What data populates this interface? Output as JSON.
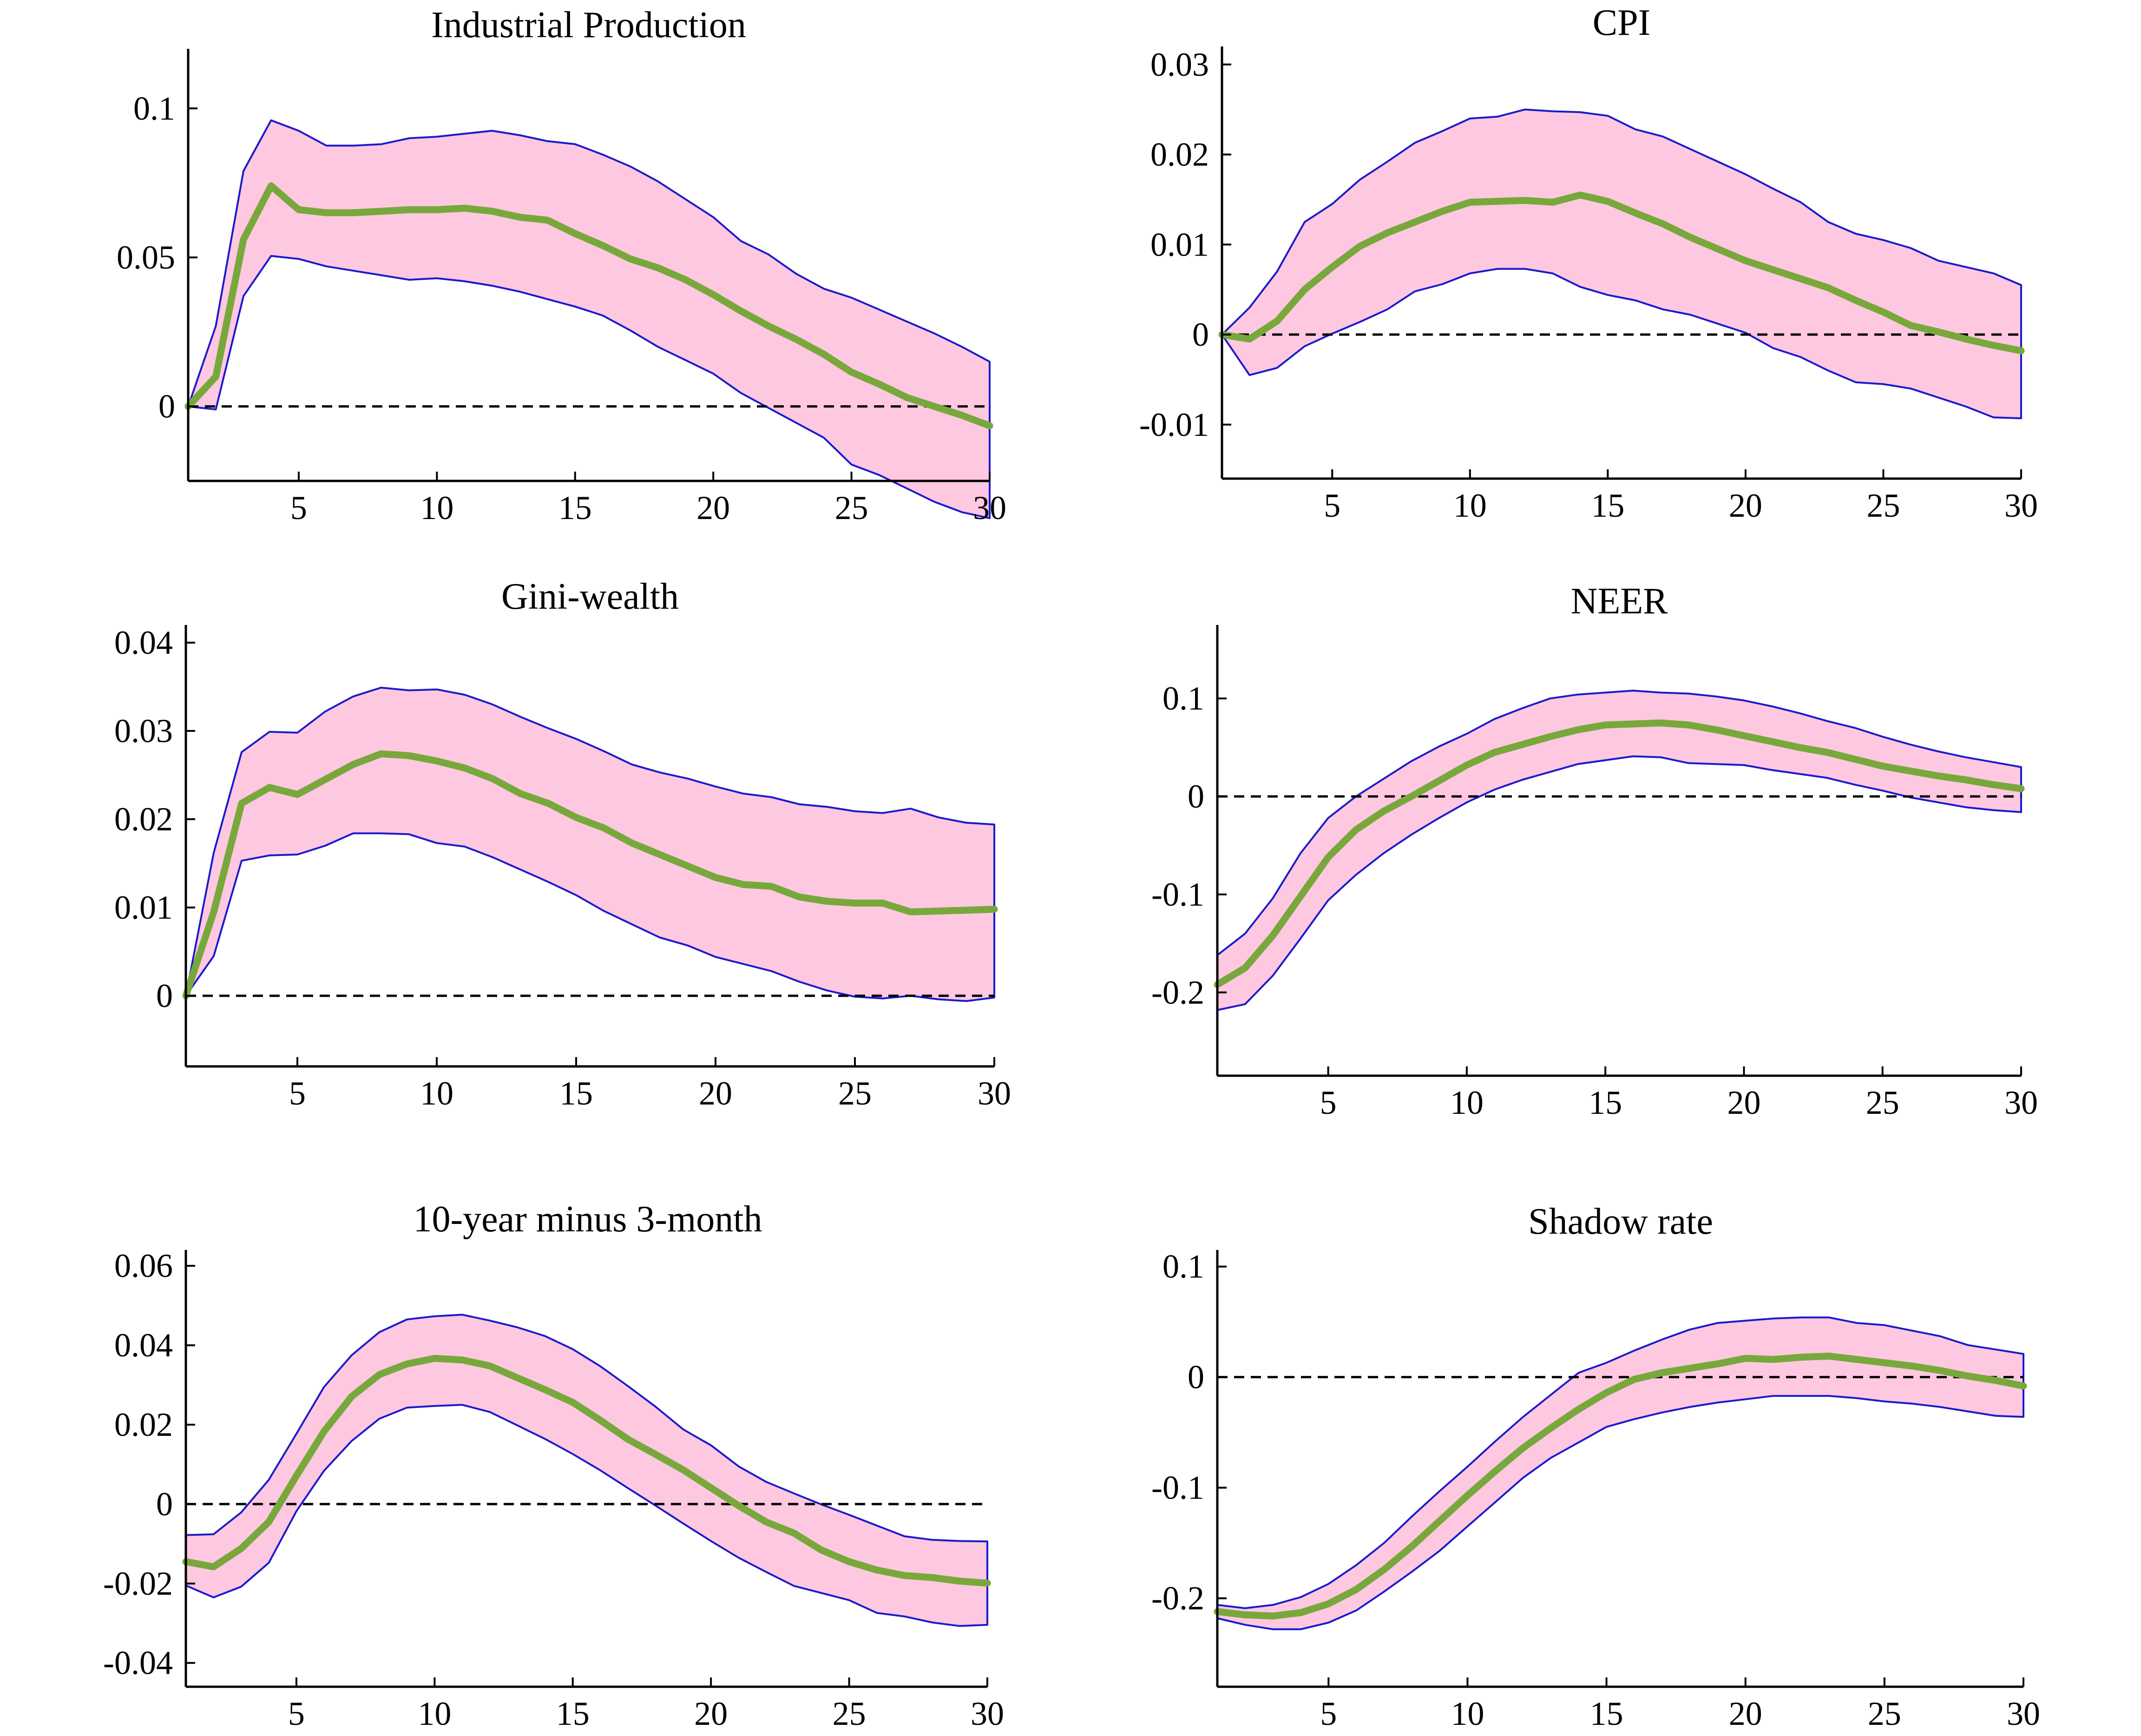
{
  "colors": {
    "band_fill": "#ffc8e1",
    "band_line": "#1a1acc",
    "median_line": "#78a83c",
    "zero_line": "#000000"
  },
  "chart_data": [
    {
      "id": "industrial-production",
      "type": "line",
      "title": "Industrial Production",
      "x": [
        1,
        2,
        3,
        4,
        5,
        6,
        7,
        8,
        9,
        10,
        11,
        12,
        13,
        14,
        15,
        16,
        17,
        18,
        19,
        20,
        21,
        22,
        23,
        24,
        25,
        26,
        27,
        28,
        29,
        30
      ],
      "xlim": [
        1,
        30
      ],
      "ylim": [
        -0.025,
        0.12
      ],
      "xticks": [
        5,
        10,
        15,
        20,
        25,
        30
      ],
      "yticks": [
        0,
        0.05,
        0.1
      ],
      "ytick_labels": [
        "0",
        "0.05",
        "0.1"
      ],
      "median": [
        0,
        0.01,
        0.056,
        0.074,
        0.066,
        0.065,
        0.065,
        0.0655,
        0.066,
        0.066,
        0.0665,
        0.0655,
        0.0635,
        0.0625,
        0.058,
        0.054,
        0.0495,
        0.0465,
        0.0425,
        0.0375,
        0.032,
        0.027,
        0.0225,
        0.0175,
        0.0115,
        0.0075,
        0.003,
        0.0,
        -0.003,
        -0.0065
      ],
      "upper": [
        0,
        0.027,
        0.079,
        0.096,
        0.0925,
        0.0875,
        0.0875,
        0.088,
        0.09,
        0.0905,
        0.0915,
        0.0925,
        0.091,
        0.089,
        0.088,
        0.0845,
        0.0805,
        0.0755,
        0.0695,
        0.0635,
        0.0555,
        0.051,
        0.0445,
        0.0395,
        0.0365,
        0.0325,
        0.0285,
        0.0245,
        0.02,
        0.015
      ],
      "lower": [
        0,
        -0.001,
        0.037,
        0.0505,
        0.0495,
        0.047,
        0.0455,
        0.044,
        0.0425,
        0.043,
        0.042,
        0.0405,
        0.0385,
        0.036,
        0.0335,
        0.0305,
        0.0255,
        0.02,
        0.0155,
        0.011,
        0.0045,
        -0.0005,
        -0.0055,
        -0.0105,
        -0.0195,
        -0.023,
        -0.0275,
        -0.032,
        -0.0355,
        -0.0375
      ]
    },
    {
      "id": "cpi",
      "type": "line",
      "title": "CPI",
      "x": [
        1,
        2,
        3,
        4,
        5,
        6,
        7,
        8,
        9,
        10,
        11,
        12,
        13,
        14,
        15,
        16,
        17,
        18,
        19,
        20,
        21,
        22,
        23,
        24,
        25,
        26,
        27,
        28,
        29,
        30
      ],
      "xlim": [
        1,
        30
      ],
      "ylim": [
        -0.016,
        0.032
      ],
      "xticks": [
        5,
        10,
        15,
        20,
        25,
        30
      ],
      "yticks": [
        -0.01,
        0,
        0.01,
        0.02,
        0.03
      ],
      "ytick_labels": [
        "-0.01",
        "0",
        "0.01",
        "0.02",
        "0.03"
      ],
      "median": [
        0,
        -0.0005,
        0.0015,
        0.005,
        0.0075,
        0.0098,
        0.0113,
        0.0125,
        0.0137,
        0.0147,
        0.0148,
        0.0149,
        0.0147,
        0.0155,
        0.0148,
        0.0135,
        0.0123,
        0.0108,
        0.0095,
        0.0082,
        0.0072,
        0.0062,
        0.0052,
        0.0038,
        0.0025,
        0.001,
        0.0003,
        -0.0005,
        -0.0012,
        -0.0018
      ],
      "upper": [
        0,
        0.003,
        0.007,
        0.0125,
        0.0145,
        0.0172,
        0.0192,
        0.0213,
        0.0226,
        0.024,
        0.0242,
        0.025,
        0.0248,
        0.0247,
        0.0243,
        0.0228,
        0.022,
        0.0206,
        0.0192,
        0.0178,
        0.0162,
        0.0147,
        0.0125,
        0.0112,
        0.0105,
        0.0096,
        0.0082,
        0.0075,
        0.0068,
        0.0055
      ],
      "lower": [
        0,
        -0.0045,
        -0.0037,
        -0.0013,
        0.0001,
        0.0014,
        0.0028,
        0.0048,
        0.0056,
        0.0068,
        0.0073,
        0.0073,
        0.0068,
        0.0053,
        0.0044,
        0.0038,
        0.0028,
        0.0022,
        0.0012,
        0.0002,
        -0.0015,
        -0.0025,
        -0.004,
        -0.0053,
        -0.0055,
        -0.006,
        -0.007,
        -0.008,
        -0.0092,
        -0.0093
      ]
    },
    {
      "id": "gini-wealth",
      "type": "line",
      "title": "Gini-wealth",
      "x": [
        1,
        2,
        3,
        4,
        5,
        6,
        7,
        8,
        9,
        10,
        11,
        12,
        13,
        14,
        15,
        16,
        17,
        18,
        19,
        20,
        21,
        22,
        23,
        24,
        25,
        26,
        27,
        28,
        29,
        30
      ],
      "xlim": [
        1,
        30
      ],
      "ylim": [
        -0.008,
        0.042
      ],
      "xticks": [
        5,
        10,
        15,
        20,
        25,
        30
      ],
      "yticks": [
        0,
        0.01,
        0.02,
        0.03,
        0.04
      ],
      "ytick_labels": [
        "0",
        "0.01",
        "0.02",
        "0.03",
        "0.04"
      ],
      "median": [
        0,
        0.0095,
        0.0218,
        0.0236,
        0.0228,
        0.0245,
        0.0262,
        0.0274,
        0.0272,
        0.0266,
        0.0258,
        0.0246,
        0.0229,
        0.0218,
        0.0202,
        0.019,
        0.0173,
        0.016,
        0.0147,
        0.0134,
        0.0126,
        0.0124,
        0.0112,
        0.0107,
        0.0105,
        0.0105,
        0.0095,
        0.0096,
        0.0097,
        0.0098
      ],
      "upper": [
        0,
        0.0162,
        0.0276,
        0.0299,
        0.0298,
        0.0322,
        0.0339,
        0.0349,
        0.0346,
        0.0347,
        0.0341,
        0.033,
        0.0316,
        0.0303,
        0.0291,
        0.0277,
        0.0262,
        0.0253,
        0.0246,
        0.0237,
        0.0229,
        0.0225,
        0.0217,
        0.0214,
        0.0209,
        0.0207,
        0.0212,
        0.0202,
        0.0196,
        0.0194
      ],
      "lower": [
        0,
        0.0045,
        0.0153,
        0.0159,
        0.016,
        0.017,
        0.0184,
        0.0184,
        0.0183,
        0.0173,
        0.0169,
        0.0157,
        0.0143,
        0.0129,
        0.0114,
        0.0096,
        0.0081,
        0.0066,
        0.0057,
        0.0044,
        0.0036,
        0.0028,
        0.0016,
        0.0006,
        -0.0001,
        -0.0003,
        0.0,
        -0.0004,
        -0.0006,
        -0.0002
      ]
    },
    {
      "id": "neer",
      "type": "line",
      "title": "NEER",
      "x": [
        1,
        2,
        3,
        4,
        5,
        6,
        7,
        8,
        9,
        10,
        11,
        12,
        13,
        14,
        15,
        16,
        17,
        18,
        19,
        20,
        21,
        22,
        23,
        24,
        25,
        26,
        27,
        28,
        29,
        30
      ],
      "xlim": [
        1,
        30
      ],
      "ylim": [
        -0.285,
        0.175
      ],
      "xticks": [
        5,
        10,
        15,
        20,
        25,
        30
      ],
      "yticks": [
        -0.2,
        -0.1,
        0,
        0.1
      ],
      "ytick_labels": [
        "-0.2",
        "-0.1",
        "0",
        "0.1"
      ],
      "median": [
        -0.192,
        -0.175,
        -0.142,
        -0.102,
        -0.062,
        -0.034,
        -0.015,
        0.0,
        0.016,
        0.032,
        0.045,
        0.053,
        0.061,
        0.068,
        0.073,
        0.074,
        0.075,
        0.073,
        0.068,
        0.062,
        0.056,
        0.05,
        0.045,
        0.038,
        0.031,
        0.026,
        0.021,
        0.017,
        0.012,
        0.008
      ],
      "upper": [
        -0.162,
        -0.14,
        -0.104,
        -0.058,
        -0.022,
        0.0,
        0.018,
        0.036,
        0.051,
        0.064,
        0.079,
        0.09,
        0.1,
        0.104,
        0.106,
        0.108,
        0.106,
        0.105,
        0.102,
        0.098,
        0.092,
        0.085,
        0.077,
        0.07,
        0.061,
        0.053,
        0.046,
        0.04,
        0.035,
        0.03
      ],
      "lower": [
        -0.218,
        -0.212,
        -0.183,
        -0.145,
        -0.106,
        -0.08,
        -0.058,
        -0.039,
        -0.022,
        -0.006,
        0.007,
        0.017,
        0.025,
        0.033,
        0.037,
        0.041,
        0.04,
        0.034,
        0.033,
        0.032,
        0.027,
        0.023,
        0.019,
        0.012,
        0.006,
        -0.001,
        -0.006,
        -0.011,
        -0.014,
        -0.016
      ]
    },
    {
      "id": "ten-year-minus-three-month",
      "type": "line",
      "title": "10-year minus 3-month",
      "x": [
        1,
        2,
        3,
        4,
        5,
        6,
        7,
        8,
        9,
        10,
        11,
        12,
        13,
        14,
        15,
        16,
        17,
        18,
        19,
        20,
        21,
        22,
        23,
        24,
        25,
        26,
        27,
        28,
        29,
        30
      ],
      "xlim": [
        1,
        30
      ],
      "ylim": [
        -0.046,
        0.064
      ],
      "xticks": [
        5,
        10,
        15,
        20,
        25,
        30
      ],
      "yticks": [
        -0.04,
        -0.02,
        0,
        0.02,
        0.04,
        0.06
      ],
      "ytick_labels": [
        "-0.04",
        "-0.02",
        "0",
        "0.02",
        "0.04",
        "0.06"
      ],
      "median": [
        -0.0145,
        -0.0158,
        -0.0112,
        -0.0045,
        0.0071,
        0.0183,
        0.0271,
        0.0326,
        0.0353,
        0.0367,
        0.0363,
        0.0348,
        0.0318,
        0.0288,
        0.0256,
        0.0211,
        0.0163,
        0.0125,
        0.0086,
        0.0041,
        -0.0004,
        -0.0045,
        -0.0073,
        -0.0116,
        -0.0145,
        -0.0166,
        -0.018,
        -0.0185,
        -0.0194,
        -0.0199
      ],
      "upper": [
        -0.0078,
        -0.0076,
        -0.0021,
        0.0061,
        0.0177,
        0.0295,
        0.0375,
        0.0433,
        0.0465,
        0.0473,
        0.0477,
        0.0462,
        0.0445,
        0.0423,
        0.039,
        0.0347,
        0.0297,
        0.0245,
        0.0188,
        0.0148,
        0.0095,
        0.0056,
        0.0027,
        -0.0001,
        -0.0027,
        -0.0054,
        -0.0081,
        -0.009,
        -0.0093,
        -0.0094
      ],
      "lower": [
        -0.0205,
        -0.0235,
        -0.0208,
        -0.0148,
        -0.0018,
        0.0084,
        0.0159,
        0.0215,
        0.0243,
        0.0247,
        0.025,
        0.0232,
        0.0198,
        0.0164,
        0.0126,
        0.0085,
        0.004,
        -0.0004,
        -0.0049,
        -0.0093,
        -0.0135,
        -0.0171,
        -0.0206,
        -0.0224,
        -0.0242,
        -0.0274,
        -0.0283,
        -0.0298,
        -0.0307,
        -0.0304
      ]
    },
    {
      "id": "shadow-rate",
      "type": "line",
      "title": "Shadow rate",
      "x": [
        1,
        2,
        3,
        4,
        5,
        6,
        7,
        8,
        9,
        10,
        11,
        12,
        13,
        14,
        15,
        16,
        17,
        18,
        19,
        20,
        21,
        22,
        23,
        24,
        25,
        26,
        27,
        28,
        29,
        30
      ],
      "xlim": [
        1,
        30
      ],
      "ylim": [
        -0.28,
        0.115
      ],
      "xticks": [
        5,
        10,
        15,
        20,
        25,
        30
      ],
      "yticks": [
        -0.2,
        -0.1,
        0,
        0.1
      ],
      "ytick_labels": [
        "-0.2",
        "-0.1",
        "0",
        "0.1"
      ],
      "median": [
        -0.212,
        -0.215,
        -0.216,
        -0.213,
        -0.205,
        -0.192,
        -0.174,
        -0.153,
        -0.13,
        -0.107,
        -0.085,
        -0.064,
        -0.046,
        -0.029,
        -0.014,
        -0.002,
        0.004,
        0.008,
        0.012,
        0.017,
        0.016,
        0.018,
        0.019,
        0.016,
        0.013,
        0.01,
        0.006,
        0.001,
        -0.003,
        -0.008
      ],
      "upper": [
        -0.206,
        -0.209,
        -0.206,
        -0.199,
        -0.187,
        -0.17,
        -0.15,
        -0.126,
        -0.103,
        -0.081,
        -0.058,
        -0.036,
        -0.016,
        0.004,
        0.013,
        0.024,
        0.034,
        0.043,
        0.049,
        0.051,
        0.053,
        0.054,
        0.054,
        0.049,
        0.047,
        0.042,
        0.037,
        0.029,
        0.025,
        0.021
      ],
      "lower": [
        -0.218,
        -0.224,
        -0.228,
        -0.228,
        -0.222,
        -0.211,
        -0.194,
        -0.176,
        -0.157,
        -0.135,
        -0.113,
        -0.091,
        -0.073,
        -0.059,
        -0.045,
        -0.038,
        -0.032,
        -0.027,
        -0.023,
        -0.02,
        -0.017,
        -0.017,
        -0.017,
        -0.019,
        -0.022,
        -0.024,
        -0.027,
        -0.031,
        -0.035,
        -0.036
      ]
    }
  ]
}
